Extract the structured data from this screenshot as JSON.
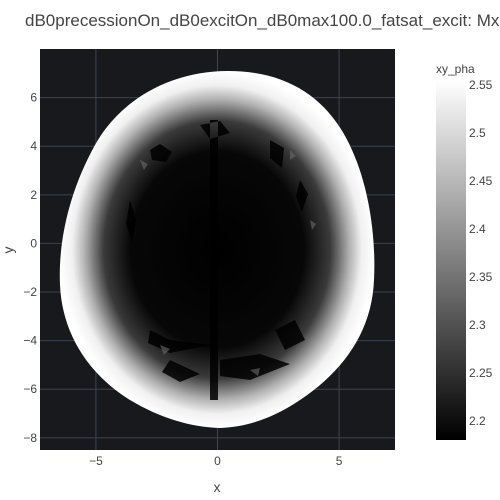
{
  "chart_data": {
    "type": "heatmap",
    "title": "dB0precessionOn_dB0excitOn_dB0max100.0_fatsat_excit: Mx",
    "xlabel": "x",
    "ylabel": "y",
    "xlim": [
      -7.3,
      7.3
    ],
    "ylim": [
      -8.5,
      8.0
    ],
    "x_ticks": [
      -5,
      0,
      5
    ],
    "x_tick_labels": [
      "−5",
      "0",
      "5"
    ],
    "y_ticks": [
      6,
      4,
      2,
      0,
      -2,
      -4,
      -6,
      -8
    ],
    "y_tick_labels": [
      "6",
      "4",
      "2",
      "0",
      "−2",
      "−4",
      "−6",
      "−8"
    ],
    "background_value_color": "#17191d",
    "grid": true,
    "grid_color": "#3a4452",
    "colorscale": "greys",
    "colorbar": {
      "title": "xy_pha",
      "range": [
        2.18,
        2.555
      ],
      "ticks": [
        2.55,
        2.5,
        2.45,
        2.4,
        2.35,
        2.3,
        2.25,
        2.2
      ],
      "tick_labels": [
        "2.55",
        "2.5",
        "2.45",
        "2.4",
        "2.35",
        "2.3",
        "2.25",
        "2.2"
      ],
      "low_color": "#000000",
      "high_color": "#ffffff",
      "placement": "right"
    },
    "phantom": {
      "shape": "head-cross-section",
      "center": [
        0.2,
        0.0
      ],
      "outer_semi_axes": [
        6.3,
        7.4
      ],
      "value_center": 2.18,
      "value_rim": 2.555
    }
  }
}
